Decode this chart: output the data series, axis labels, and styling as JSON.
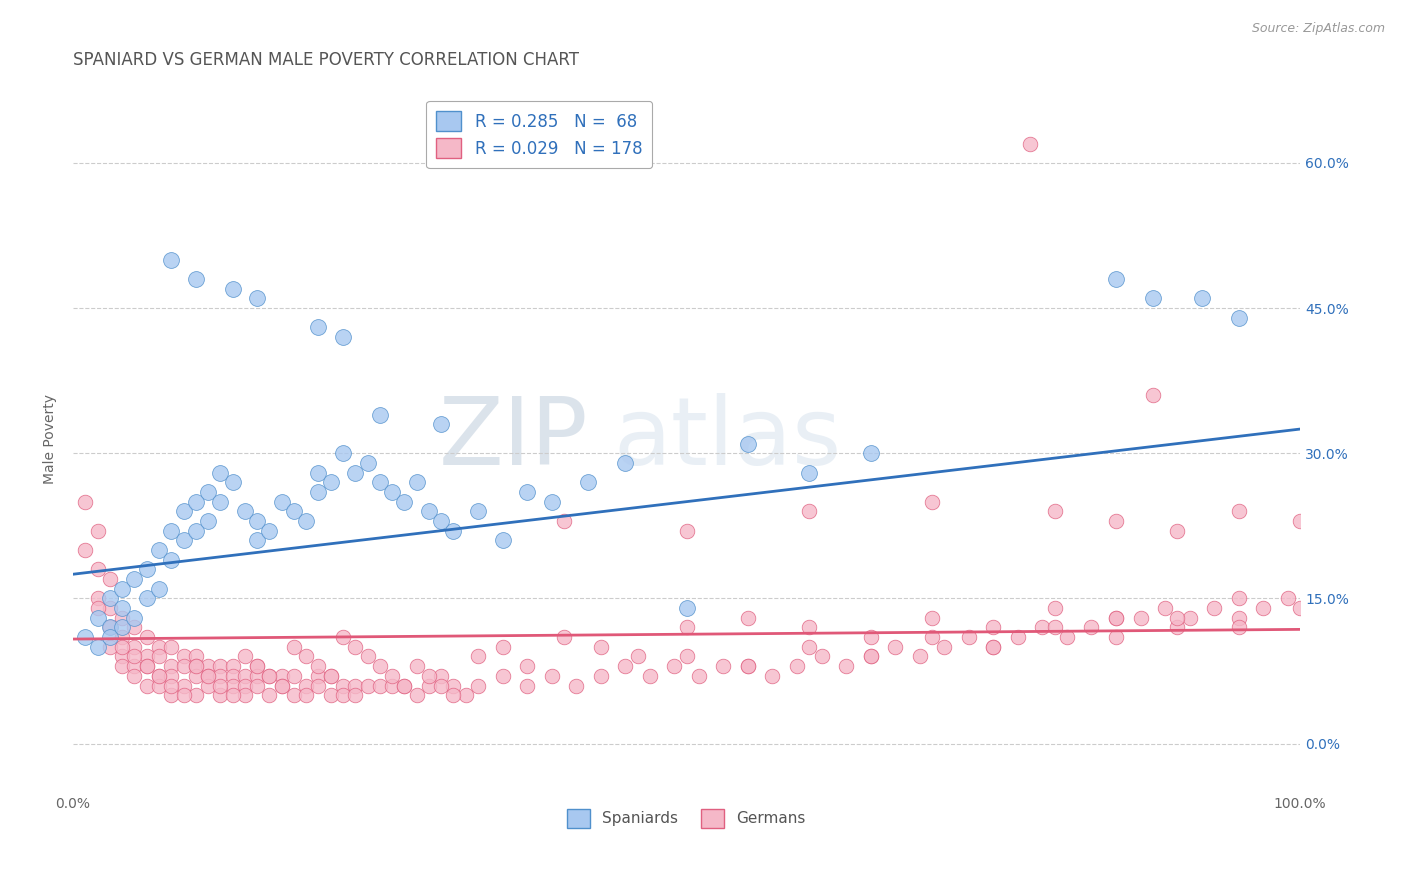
{
  "title": "SPANIARD VS GERMAN MALE POVERTY CORRELATION CHART",
  "source": "Source: ZipAtlas.com",
  "ylabel": "Male Poverty",
  "xlim": [
    0,
    1
  ],
  "ylim": [
    -0.05,
    0.68
  ],
  "yticks": [
    0.0,
    0.15,
    0.3,
    0.45,
    0.6
  ],
  "ytick_labels": [
    "0.0%",
    "15.0%",
    "30.0%",
    "45.0%",
    "60.0%"
  ],
  "xticks": [
    0.0,
    1.0
  ],
  "xtick_labels": [
    "0.0%",
    "100.0%"
  ],
  "spaniard_color": "#A8C8F0",
  "german_color": "#F5B8C8",
  "spaniard_edge_color": "#5090CC",
  "german_edge_color": "#E06080",
  "spaniard_line_color": "#3070BB",
  "german_line_color": "#E05878",
  "legend_label1": "R = 0.285   N =  68",
  "legend_label2": "R = 0.029   N = 178",
  "legend_label_spaniard": "Spaniards",
  "legend_label_german": "Germans",
  "watermark_zip": "ZIP",
  "watermark_atlas": "atlas",
  "background_color": "#FFFFFF",
  "grid_color": "#CCCCCC",
  "title_fontsize": 12,
  "axis_label_fontsize": 10,
  "tick_fontsize": 10,
  "blue_trend_x0": 0.0,
  "blue_trend_y0": 0.175,
  "blue_trend_x1": 1.0,
  "blue_trend_y1": 0.325,
  "pink_trend_x0": 0.0,
  "pink_trend_y0": 0.108,
  "pink_trend_x1": 1.0,
  "pink_trend_y1": 0.118,
  "sp_x": [
    0.01,
    0.02,
    0.02,
    0.03,
    0.03,
    0.03,
    0.04,
    0.04,
    0.04,
    0.05,
    0.05,
    0.06,
    0.06,
    0.07,
    0.07,
    0.08,
    0.08,
    0.09,
    0.09,
    0.1,
    0.1,
    0.11,
    0.11,
    0.12,
    0.12,
    0.13,
    0.14,
    0.15,
    0.15,
    0.16,
    0.17,
    0.18,
    0.19,
    0.2,
    0.2,
    0.21,
    0.22,
    0.23,
    0.24,
    0.25,
    0.26,
    0.27,
    0.28,
    0.29,
    0.3,
    0.31,
    0.33,
    0.35,
    0.37,
    0.39,
    0.42,
    0.45,
    0.5,
    0.55,
    0.6,
    0.65,
    0.85,
    0.88,
    0.92,
    0.95,
    0.1,
    0.15,
    0.2,
    0.25,
    0.3,
    0.08,
    0.13,
    0.22
  ],
  "sp_y": [
    0.11,
    0.1,
    0.13,
    0.12,
    0.15,
    0.11,
    0.14,
    0.12,
    0.16,
    0.13,
    0.17,
    0.15,
    0.18,
    0.16,
    0.2,
    0.19,
    0.22,
    0.21,
    0.24,
    0.22,
    0.25,
    0.23,
    0.26,
    0.25,
    0.28,
    0.27,
    0.24,
    0.23,
    0.21,
    0.22,
    0.25,
    0.24,
    0.23,
    0.26,
    0.28,
    0.27,
    0.3,
    0.28,
    0.29,
    0.27,
    0.26,
    0.25,
    0.27,
    0.24,
    0.23,
    0.22,
    0.24,
    0.21,
    0.26,
    0.25,
    0.27,
    0.29,
    0.14,
    0.31,
    0.28,
    0.3,
    0.48,
    0.46,
    0.46,
    0.44,
    0.48,
    0.46,
    0.43,
    0.34,
    0.33,
    0.5,
    0.47,
    0.42
  ],
  "de_x": [
    0.01,
    0.01,
    0.02,
    0.02,
    0.02,
    0.03,
    0.03,
    0.03,
    0.03,
    0.04,
    0.04,
    0.04,
    0.04,
    0.05,
    0.05,
    0.05,
    0.05,
    0.06,
    0.06,
    0.06,
    0.06,
    0.07,
    0.07,
    0.07,
    0.07,
    0.08,
    0.08,
    0.08,
    0.08,
    0.09,
    0.09,
    0.09,
    0.1,
    0.1,
    0.1,
    0.1,
    0.11,
    0.11,
    0.11,
    0.12,
    0.12,
    0.12,
    0.13,
    0.13,
    0.13,
    0.14,
    0.14,
    0.14,
    0.15,
    0.15,
    0.15,
    0.16,
    0.16,
    0.17,
    0.17,
    0.18,
    0.18,
    0.19,
    0.19,
    0.2,
    0.2,
    0.21,
    0.21,
    0.22,
    0.22,
    0.23,
    0.23,
    0.24,
    0.25,
    0.26,
    0.27,
    0.28,
    0.29,
    0.3,
    0.31,
    0.32,
    0.33,
    0.35,
    0.37,
    0.39,
    0.41,
    0.43,
    0.45,
    0.47,
    0.49,
    0.51,
    0.53,
    0.55,
    0.57,
    0.59,
    0.61,
    0.63,
    0.65,
    0.67,
    0.69,
    0.71,
    0.73,
    0.75,
    0.77,
    0.79,
    0.81,
    0.83,
    0.85,
    0.87,
    0.89,
    0.91,
    0.93,
    0.95,
    0.97,
    0.99,
    0.02,
    0.03,
    0.04,
    0.05,
    0.06,
    0.07,
    0.08,
    0.09,
    0.1,
    0.11,
    0.12,
    0.13,
    0.14,
    0.15,
    0.16,
    0.17,
    0.18,
    0.19,
    0.2,
    0.21,
    0.22,
    0.23,
    0.24,
    0.25,
    0.26,
    0.27,
    0.28,
    0.29,
    0.3,
    0.31,
    0.33,
    0.35,
    0.37,
    0.4,
    0.43,
    0.46,
    0.5,
    0.55,
    0.6,
    0.65,
    0.7,
    0.75,
    0.8,
    0.85,
    0.9,
    0.95,
    0.5,
    0.55,
    0.6,
    0.65,
    0.7,
    0.75,
    0.8,
    0.85,
    0.9,
    0.95,
    1.0,
    0.4,
    0.5,
    0.6,
    0.7,
    0.8,
    0.85,
    0.9,
    0.95,
    1.0,
    0.78,
    0.88
  ],
  "de_y": [
    0.25,
    0.2,
    0.22,
    0.18,
    0.15,
    0.17,
    0.14,
    0.12,
    0.1,
    0.13,
    0.11,
    0.09,
    0.08,
    0.12,
    0.1,
    0.08,
    0.07,
    0.11,
    0.09,
    0.08,
    0.06,
    0.1,
    0.09,
    0.07,
    0.06,
    0.1,
    0.08,
    0.07,
    0.05,
    0.09,
    0.08,
    0.06,
    0.09,
    0.08,
    0.07,
    0.05,
    0.08,
    0.07,
    0.06,
    0.08,
    0.07,
    0.05,
    0.08,
    0.07,
    0.06,
    0.07,
    0.06,
    0.05,
    0.08,
    0.07,
    0.06,
    0.07,
    0.05,
    0.07,
    0.06,
    0.07,
    0.05,
    0.06,
    0.05,
    0.07,
    0.06,
    0.07,
    0.05,
    0.06,
    0.05,
    0.06,
    0.05,
    0.06,
    0.06,
    0.06,
    0.06,
    0.05,
    0.06,
    0.07,
    0.06,
    0.05,
    0.06,
    0.07,
    0.06,
    0.07,
    0.06,
    0.07,
    0.08,
    0.07,
    0.08,
    0.07,
    0.08,
    0.08,
    0.07,
    0.08,
    0.09,
    0.08,
    0.09,
    0.1,
    0.09,
    0.1,
    0.11,
    0.1,
    0.11,
    0.12,
    0.11,
    0.12,
    0.13,
    0.13,
    0.14,
    0.13,
    0.14,
    0.15,
    0.14,
    0.15,
    0.14,
    0.12,
    0.1,
    0.09,
    0.08,
    0.07,
    0.06,
    0.05,
    0.08,
    0.07,
    0.06,
    0.05,
    0.09,
    0.08,
    0.07,
    0.06,
    0.1,
    0.09,
    0.08,
    0.07,
    0.11,
    0.1,
    0.09,
    0.08,
    0.07,
    0.06,
    0.08,
    0.07,
    0.06,
    0.05,
    0.09,
    0.1,
    0.08,
    0.11,
    0.1,
    0.09,
    0.12,
    0.13,
    0.12,
    0.11,
    0.13,
    0.12,
    0.14,
    0.13,
    0.12,
    0.13,
    0.09,
    0.08,
    0.1,
    0.09,
    0.11,
    0.1,
    0.12,
    0.11,
    0.13,
    0.12,
    0.14,
    0.23,
    0.22,
    0.24,
    0.25,
    0.24,
    0.23,
    0.22,
    0.24,
    0.23,
    0.62,
    0.36
  ]
}
